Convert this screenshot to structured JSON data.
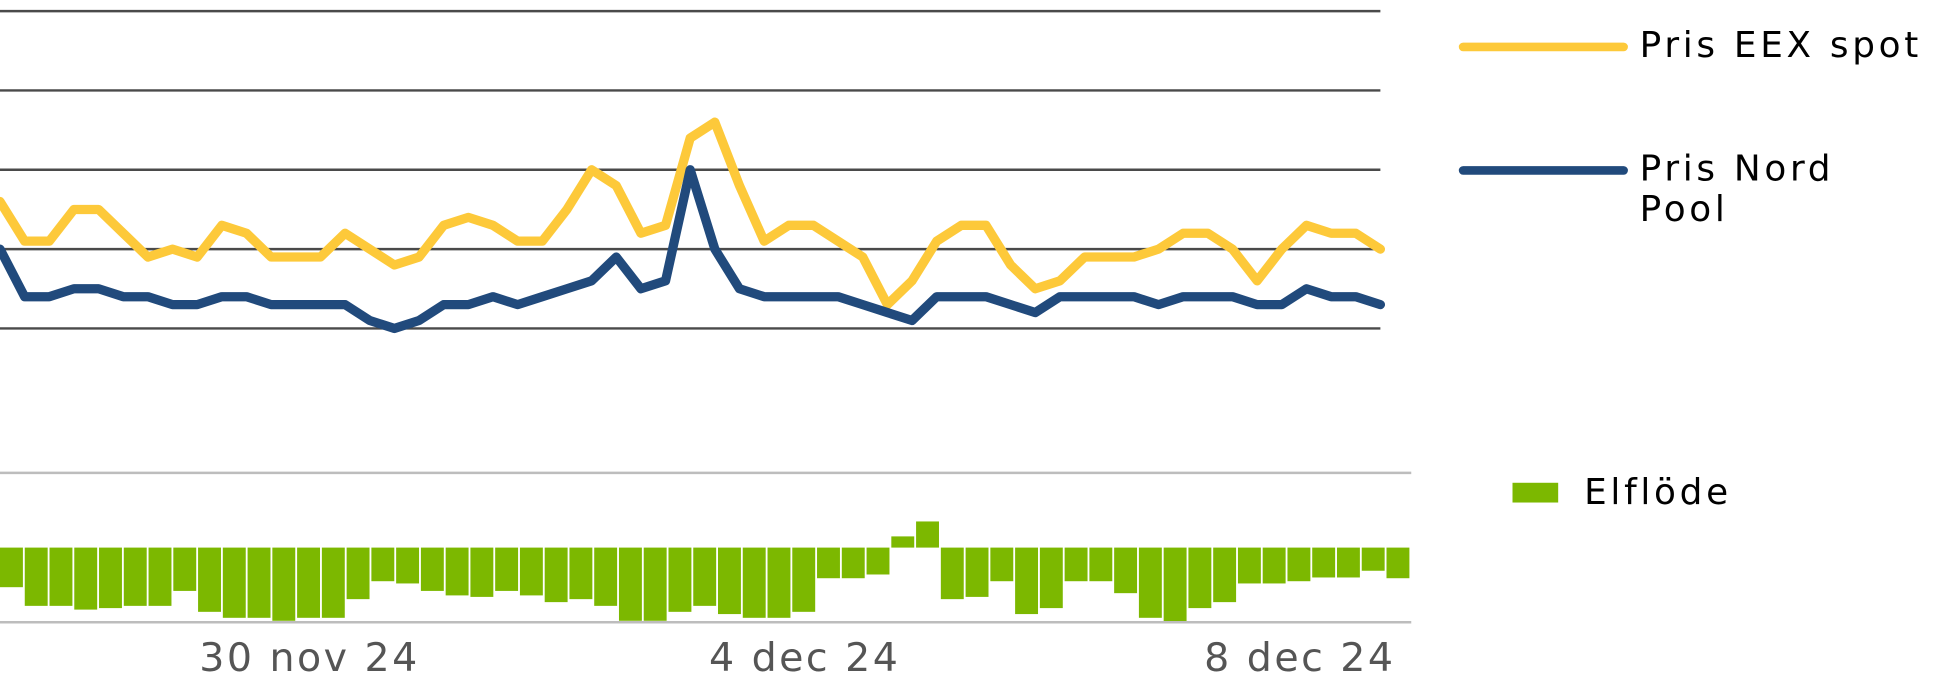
{
  "chart_data": [
    {
      "type": "line",
      "categories": [
        null,
        null,
        null,
        null,
        null,
        null,
        null,
        null,
        null,
        null,
        null,
        null,
        null,
        null,
        null,
        null,
        null,
        null,
        null,
        null,
        null,
        null,
        null,
        null,
        null,
        null,
        null,
        null,
        null,
        null,
        null,
        null,
        null,
        null,
        null,
        null,
        null,
        null,
        null,
        null,
        null,
        null,
        null,
        null,
        null,
        null,
        null,
        null,
        null,
        null,
        null,
        null,
        null,
        null,
        null,
        null,
        null
      ],
      "series": [
        {
          "name": "Pris EEX spot",
          "color": "#fdc93a",
          "values": [
            1.6,
            1.1,
            1.1,
            1.5,
            1.5,
            1.2,
            0.9,
            1.0,
            0.9,
            1.3,
            1.2,
            0.9,
            0.9,
            0.9,
            1.2,
            1.0,
            0.8,
            0.9,
            1.3,
            1.4,
            1.3,
            1.1,
            1.1,
            1.5,
            2.0,
            1.8,
            1.2,
            1.3,
            2.4,
            2.6,
            1.8,
            1.1,
            1.3,
            1.3,
            1.1,
            0.9,
            0.3,
            0.6,
            1.1,
            1.3,
            1.3,
            0.8,
            0.5,
            0.6,
            0.9,
            0.9,
            0.9,
            1.0,
            1.2,
            1.2,
            1.0,
            0.6,
            1.0,
            1.3,
            1.2,
            1.2,
            1.0
          ]
        },
        {
          "name": "Pris Nord Pool",
          "color": "#214a7c",
          "values": [
            1.0,
            0.4,
            0.4,
            0.5,
            0.5,
            0.4,
            0.4,
            0.3,
            0.3,
            0.4,
            0.4,
            0.3,
            0.3,
            0.3,
            0.3,
            0.1,
            0.0,
            0.1,
            0.3,
            0.3,
            0.4,
            0.3,
            0.4,
            0.5,
            0.6,
            0.9,
            0.5,
            0.6,
            2.0,
            1.0,
            0.5,
            0.4,
            0.4,
            0.4,
            0.4,
            0.3,
            0.2,
            0.1,
            0.4,
            0.4,
            0.4,
            0.3,
            0.2,
            0.4,
            0.4,
            0.4,
            0.4,
            0.3,
            0.4,
            0.4,
            0.4,
            0.3,
            0.3,
            0.5,
            0.4,
            0.4,
            0.3
          ]
        }
      ],
      "ylim": [
        0,
        4
      ],
      "yticks": [
        0,
        1,
        2,
        3,
        4
      ],
      "grid": true
    },
    {
      "type": "bar",
      "categories": [
        null,
        null,
        null,
        null,
        null,
        null,
        null,
        null,
        null,
        null,
        null,
        null,
        "30 nov 24",
        null,
        null,
        null,
        null,
        null,
        null,
        null,
        null,
        null,
        null,
        null,
        null,
        null,
        null,
        null,
        null,
        null,
        null,
        null,
        "4 dec 24",
        null,
        null,
        null,
        null,
        null,
        null,
        null,
        null,
        null,
        null,
        null,
        null,
        null,
        null,
        null,
        null,
        null,
        null,
        null,
        "8 dec 24",
        null,
        null,
        null,
        null
      ],
      "series": [
        {
          "name": "Elflöde",
          "color": "#7cb800",
          "values": [
            -0.53,
            -0.78,
            -0.78,
            -0.83,
            -0.81,
            -0.78,
            -0.78,
            -0.58,
            -0.86,
            -0.94,
            -0.94,
            -0.98,
            -0.94,
            -0.94,
            -0.69,
            -0.45,
            -0.48,
            -0.58,
            -0.64,
            -0.66,
            -0.58,
            -0.64,
            -0.73,
            -0.69,
            -0.78,
            -0.98,
            -0.98,
            -0.86,
            -0.78,
            -0.89,
            -0.94,
            -0.94,
            -0.86,
            -0.41,
            -0.41,
            -0.36,
            0.15,
            0.35,
            -0.69,
            -0.66,
            -0.45,
            -0.89,
            -0.81,
            -0.45,
            -0.45,
            -0.61,
            -0.94,
            -0.99,
            -0.81,
            -0.73,
            -0.48,
            -0.48,
            -0.45,
            -0.4,
            -0.4,
            -0.31,
            -0.41
          ]
        }
      ],
      "ylim": [
        -1,
        1
      ],
      "yticks": [
        -1,
        1
      ],
      "grid": true
    }
  ]
}
